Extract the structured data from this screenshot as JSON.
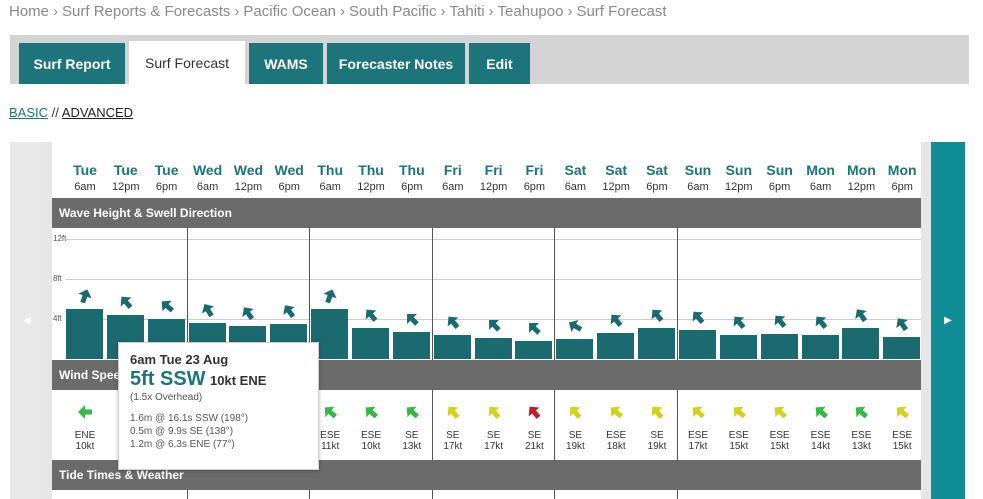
{
  "breadcrumb": [
    "Home",
    "Surf Reports & Forecasts",
    "Pacific Ocean",
    "South Pacific",
    "Tahiti",
    "Teahupoo",
    "Surf Forecast"
  ],
  "breadcrumb_separator": "›",
  "tabs": [
    {
      "label": "Surf Report",
      "active": false
    },
    {
      "label": "Surf Forecast",
      "active": true
    },
    {
      "label": "WAMS",
      "active": false
    },
    {
      "label": "Forecaster Notes",
      "active": false
    },
    {
      "label": "Edit",
      "active": false
    }
  ],
  "modes": {
    "basic": "BASIC",
    "separator": "//",
    "advanced": "ADVANCED"
  },
  "nav": {
    "prev": "◀",
    "next": "▶"
  },
  "sections": {
    "wave": "Wave Height & Swell Direction",
    "wind": "Wind Speed",
    "tide": "Tide Times & Weather"
  },
  "y_axis": [
    "12ft",
    "8ft",
    "4ft"
  ],
  "columns": [
    {
      "day": "Tue",
      "time": "6am",
      "wave_ft": 5.0,
      "wind_dir": "ENE",
      "wind_speed": "10kt",
      "wind_color": "#3ab54a"
    },
    {
      "day": "Tue",
      "time": "12pm",
      "wave_ft": 4.4,
      "wind_dir": "",
      "wind_speed": "",
      "wind_color": "#3ab54a"
    },
    {
      "day": "Tue",
      "time": "6pm",
      "wave_ft": 4.0,
      "wind_dir": "",
      "wind_speed": "",
      "wind_color": "#3ab54a"
    },
    {
      "day": "Wed",
      "time": "6am",
      "wave_ft": 3.6,
      "wind_dir": "",
      "wind_speed": "",
      "wind_color": "#3ab54a"
    },
    {
      "day": "Wed",
      "time": "12pm",
      "wave_ft": 3.3,
      "wind_dir": "",
      "wind_speed": "",
      "wind_color": "#3ab54a"
    },
    {
      "day": "Wed",
      "time": "6pm",
      "wave_ft": 3.5,
      "wind_dir": "",
      "wind_speed": "",
      "wind_color": "#3ab54a"
    },
    {
      "day": "Thu",
      "time": "6am",
      "wave_ft": 5.0,
      "wind_dir": "ESE",
      "wind_speed": "11kt",
      "wind_color": "#3ab54a"
    },
    {
      "day": "Thu",
      "time": "12pm",
      "wave_ft": 3.1,
      "wind_dir": "ESE",
      "wind_speed": "10kt",
      "wind_color": "#3ab54a"
    },
    {
      "day": "Thu",
      "time": "6pm",
      "wave_ft": 2.7,
      "wind_dir": "SE",
      "wind_speed": "13kt",
      "wind_color": "#3ab54a"
    },
    {
      "day": "Fri",
      "time": "6am",
      "wave_ft": 2.4,
      "wind_dir": "SE",
      "wind_speed": "17kt",
      "wind_color": "#d4d020"
    },
    {
      "day": "Fri",
      "time": "12pm",
      "wave_ft": 2.1,
      "wind_dir": "SE",
      "wind_speed": "17kt",
      "wind_color": "#d4d020"
    },
    {
      "day": "Fri",
      "time": "6pm",
      "wave_ft": 1.8,
      "wind_dir": "SE",
      "wind_speed": "21kt",
      "wind_color": "#c01f26"
    },
    {
      "day": "Sat",
      "time": "6am",
      "wave_ft": 2.0,
      "wind_dir": "SE",
      "wind_speed": "19kt",
      "wind_color": "#d4d020"
    },
    {
      "day": "Sat",
      "time": "12pm",
      "wave_ft": 2.6,
      "wind_dir": "ESE",
      "wind_speed": "18kt",
      "wind_color": "#d4d020"
    },
    {
      "day": "Sat",
      "time": "6pm",
      "wave_ft": 3.1,
      "wind_dir": "SE",
      "wind_speed": "19kt",
      "wind_color": "#d4d020"
    },
    {
      "day": "Sun",
      "time": "6am",
      "wave_ft": 2.9,
      "wind_dir": "ESE",
      "wind_speed": "17kt",
      "wind_color": "#d4d020"
    },
    {
      "day": "Sun",
      "time": "12pm",
      "wave_ft": 2.4,
      "wind_dir": "ESE",
      "wind_speed": "15kt",
      "wind_color": "#d4d020"
    },
    {
      "day": "Sun",
      "time": "6pm",
      "wave_ft": 2.5,
      "wind_dir": "ESE",
      "wind_speed": "15kt",
      "wind_color": "#d4d020"
    },
    {
      "day": "Mon",
      "time": "6am",
      "wave_ft": 2.4,
      "wind_dir": "ESE",
      "wind_speed": "14kt",
      "wind_color": "#3ab54a"
    },
    {
      "day": "Mon",
      "time": "12pm",
      "wave_ft": 3.1,
      "wind_dir": "ESE",
      "wind_speed": "13kt",
      "wind_color": "#3ab54a"
    },
    {
      "day": "Mon",
      "time": "6pm",
      "wave_ft": 2.2,
      "wind_dir": "ESE",
      "wind_speed": "15kt",
      "wind_color": "#d4d020"
    }
  ],
  "tooltip": {
    "date": "6am Tue 23 Aug",
    "height": "5ft SSW",
    "wind": "10kt ENE",
    "overhead": "(1.5x Overhead)",
    "swells": [
      "1.6m @ 16.1s SSW (198°)",
      "0.5m @ 9.9s SE (138°)",
      "1.2m @ 6.3s ENE (77°)"
    ]
  },
  "colors": {
    "accent": "#1d747a",
    "bar": "#1b6a70",
    "section": "#6b6b6b",
    "nav_right": "#0f8c95"
  }
}
